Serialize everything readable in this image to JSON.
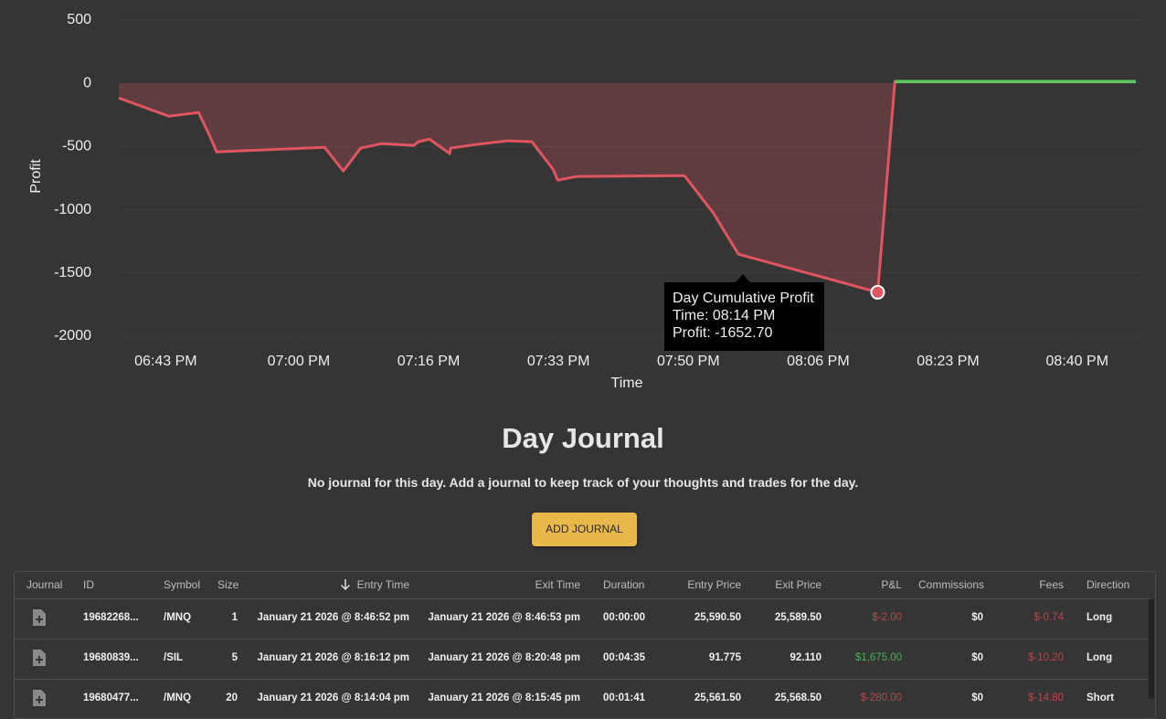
{
  "chart_data": {
    "type": "area",
    "x_label": "Time",
    "y_label": "Profit",
    "x": [
      1117,
      1123.4,
      1127.2,
      1128.7,
      1129.5,
      1143.3,
      1145.7,
      1147.9,
      1150.6,
      1154.7,
      1155.3,
      1156.7,
      1159.3,
      1159.4,
      1162.6,
      1166.7,
      1169.8,
      1172.5,
      1173.1,
      1175.5,
      1189.3,
      1193.0,
      1196.2,
      1214,
      1216.2,
      1247
    ],
    "series": [
      {
        "name": "Day Cumulative Profit",
        "color": "#e0555f",
        "positive_color": "#5cc85c",
        "values": [
          -116,
          -260,
          -231,
          -426,
          -542,
          -506,
          -694,
          -513,
          -477,
          -491,
          -462,
          -441,
          -556,
          -513,
          -484,
          -455,
          -462,
          -679,
          -766,
          -737,
          -730,
          -1026,
          -1351,
          -1652.7,
          14,
          14
        ]
      }
    ],
    "xlim": [
      1117,
      1247
    ],
    "xticks": [
      {
        "value": 1123,
        "label": "06:43 PM"
      },
      {
        "value": 1140,
        "label": "07:00 PM"
      },
      {
        "value": 1156.6,
        "label": "07:16 PM"
      },
      {
        "value": 1173.2,
        "label": "07:33 PM"
      },
      {
        "value": 1189.8,
        "label": "07:50 PM"
      },
      {
        "value": 1206.4,
        "label": "08:06 PM"
      },
      {
        "value": 1223,
        "label": "08:23 PM"
      },
      {
        "value": 1239.5,
        "label": "08:40 PM"
      }
    ],
    "ylim": [
      -2000,
      500
    ],
    "yticks": [
      -2000,
      -1500,
      -1000,
      -500,
      0,
      500
    ],
    "grid": true,
    "tooltip": {
      "title": "Day Cumulative Profit",
      "time": "Time: 08:14 PM",
      "profit": "Profit: -1652.70"
    }
  },
  "journal": {
    "title": "Day Journal",
    "message": "No journal for this day. Add a journal to keep track of your thoughts and trades for the day.",
    "button": "ADD JOURNAL"
  },
  "table": {
    "headers": [
      "Journal",
      "ID",
      "Symbol",
      "Size",
      "Entry Time",
      "Exit Time",
      "Duration",
      "Entry Price",
      "Exit Price",
      "P&L",
      "Commissions",
      "Fees",
      "Direction"
    ],
    "rows": [
      [
        "19682268...",
        "/MNQ",
        "1",
        "January 21 2026 @ 8:46:52 pm",
        "January 21 2026 @ 8:46:53 pm",
        "00:00:00",
        "25,590.50",
        "25,589.50",
        "$-2.00",
        "$0",
        "$-0.74",
        "Long"
      ],
      [
        "19680839...",
        "/SIL",
        "5",
        "January 21 2026 @ 8:16:12 pm",
        "January 21 2026 @ 8:20:48 pm",
        "00:04:35",
        "91.775",
        "92.110",
        "$1,675.00",
        "$0",
        "$-10.20",
        "Long"
      ],
      [
        "19680477...",
        "/MNQ",
        "20",
        "January 21 2026 @ 8:14:04 pm",
        "January 21 2026 @ 8:15:45 pm",
        "00:01:41",
        "25,561.50",
        "25,568.50",
        "$-280.00",
        "$0",
        "$-14.80",
        "Short"
      ]
    ]
  }
}
